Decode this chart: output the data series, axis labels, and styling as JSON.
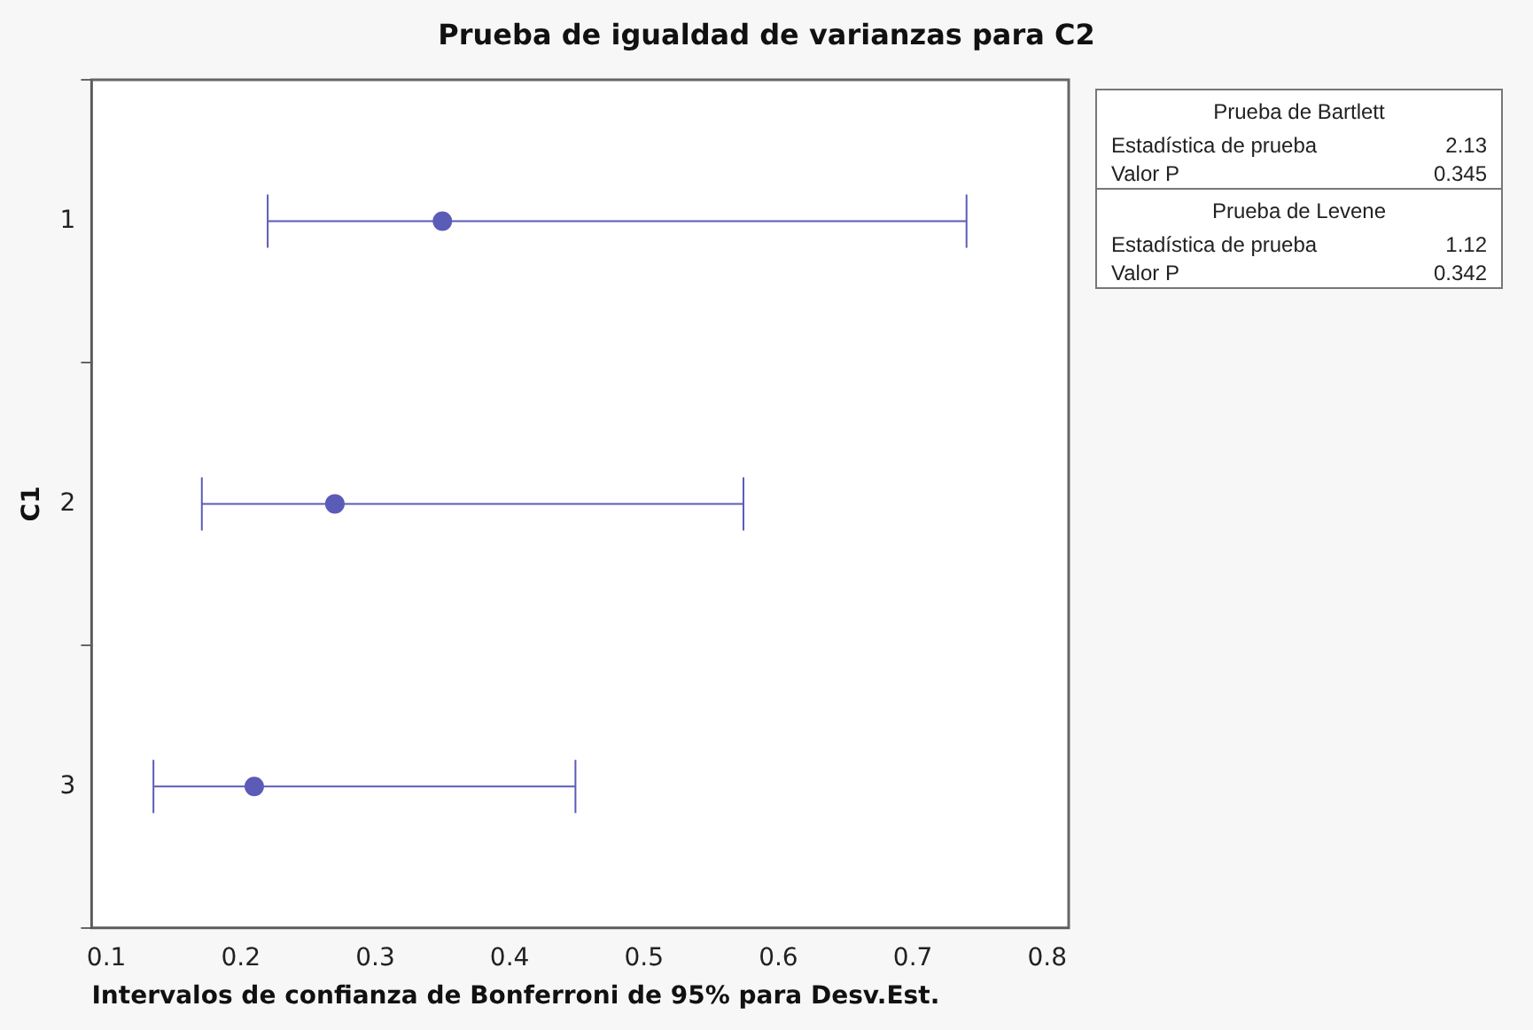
{
  "chart_data": {
    "type": "scatter",
    "orientation": "horizontal",
    "title": "Prueba de igualdad de varianzas para C2",
    "xlabel": "Intervalos de confianza de Bonferroni de 95% para Desv.Est.",
    "ylabel": "C1",
    "categories": [
      "1",
      "2",
      "3"
    ],
    "values": [
      0.35,
      0.27,
      0.21
    ],
    "errors": [
      [
        0.22,
        0.74
      ],
      [
        0.171,
        0.574
      ],
      [
        0.135,
        0.449
      ]
    ],
    "color": "#5b5bb8",
    "marker": "circle",
    "grid": false,
    "legend": false,
    "xlim": [
      0.089,
      0.816
    ],
    "xticks": [
      0.1,
      0.2,
      0.3,
      0.4,
      0.5,
      0.6,
      0.7,
      0.8
    ],
    "annotations": [
      "Prueba de Bartlett",
      "Estadística de prueba",
      "2.13",
      "Valor P",
      "0.345",
      "Prueba de Levene",
      "Estadística de prueba",
      "1.12",
      "Valor P",
      "0.342"
    ]
  }
}
